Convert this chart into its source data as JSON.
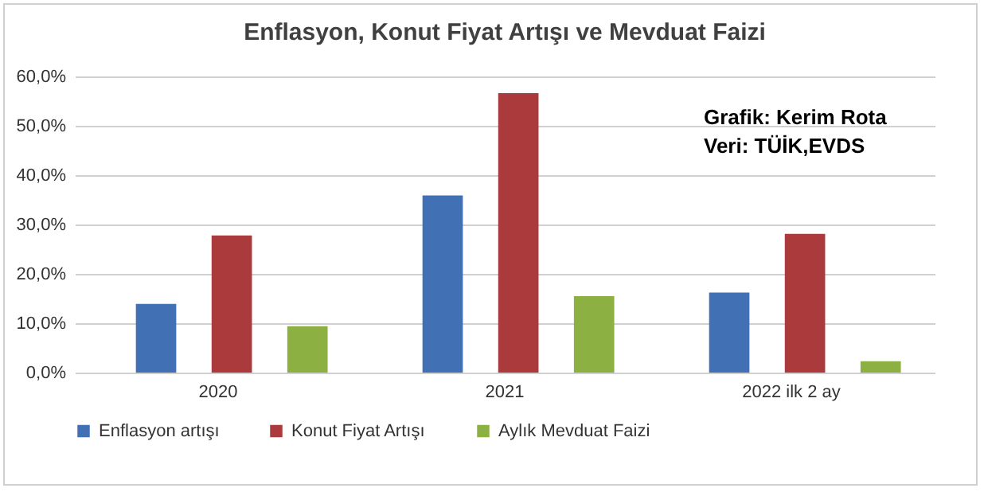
{
  "chart_data": {
    "type": "bar",
    "title": "Enflasyon, Konut Fiyat Artışı ve Mevduat Faizi",
    "categories": [
      "2020",
      "2021",
      "2022 ilk 2 ay"
    ],
    "series": [
      {
        "name": "Enflasyon artışı",
        "color": "#4170b4",
        "values": [
          13.9,
          35.9,
          16.2
        ]
      },
      {
        "name": "Konut Fiyat Artışı",
        "color": "#ab3a3d",
        "values": [
          27.8,
          56.6,
          28.1
        ]
      },
      {
        "name": "Aylık Mevduat Faizi",
        "color": "#8db042",
        "values": [
          9.4,
          15.5,
          2.3
        ]
      }
    ],
    "ylim": [
      0,
      60
    ],
    "yticks": [
      {
        "value": 0,
        "label": "0,0%"
      },
      {
        "value": 10,
        "label": "10,0%"
      },
      {
        "value": 20,
        "label": "20,0%"
      },
      {
        "value": 30,
        "label": "30,0%"
      },
      {
        "value": 40,
        "label": "40,0%"
      },
      {
        "value": 50,
        "label": "50,0%"
      },
      {
        "value": 60,
        "label": "60,0%"
      }
    ],
    "grid": "y",
    "legend": "bottom",
    "annotations": [
      "Grafik: Kerim Rota",
      "Veri: TÜİK,EVDS"
    ]
  }
}
